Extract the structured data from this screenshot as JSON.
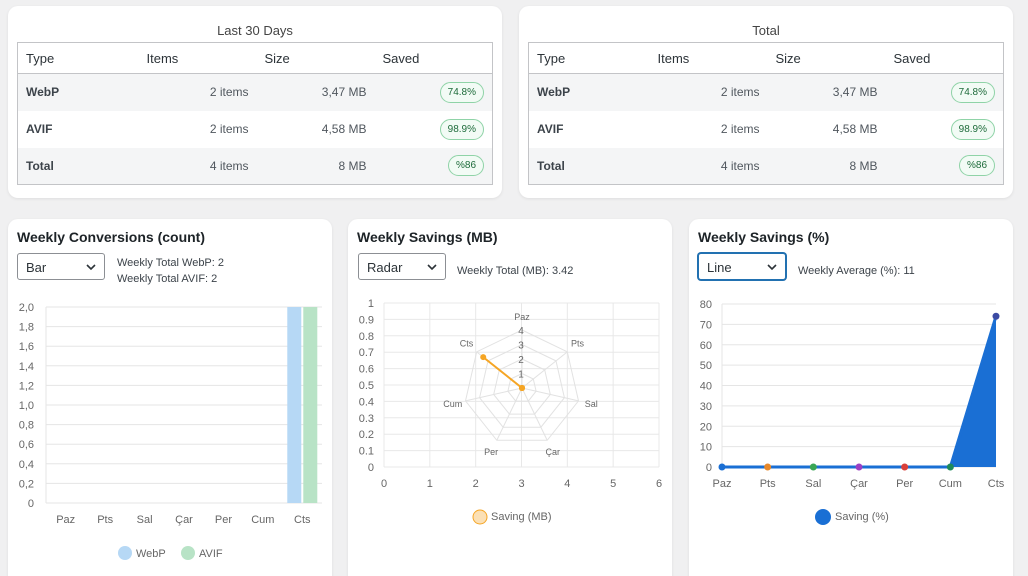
{
  "last30": {
    "title": "Last 30 Days",
    "headers": [
      "Type",
      "Items",
      "Size",
      "Saved"
    ],
    "rows": [
      {
        "type": "WebP",
        "items": "2 items",
        "size": "3,47 MB",
        "saved": "74.8%"
      },
      {
        "type": "AVIF",
        "items": "2 items",
        "size": "4,58 MB",
        "saved": "98.9%"
      },
      {
        "type": "Total",
        "items": "4 items",
        "size": "8 MB",
        "saved": "%86"
      }
    ]
  },
  "total": {
    "title": "Total",
    "headers": [
      "Type",
      "Items",
      "Size",
      "Saved"
    ],
    "rows": [
      {
        "type": "WebP",
        "items": "2 items",
        "size": "3,47 MB",
        "saved": "74.8%"
      },
      {
        "type": "AVIF",
        "items": "2 items",
        "size": "4,58 MB",
        "saved": "98.9%"
      },
      {
        "type": "Total",
        "items": "4 items",
        "size": "8 MB",
        "saved": "%86"
      }
    ]
  },
  "conversions": {
    "title": "Weekly Conversions (count)",
    "select_value": "Bar",
    "meta_webp_label": "Weekly Total WebP:",
    "meta_webp_value": "2",
    "meta_avif_label": "Weekly Total AVIF:",
    "meta_avif_value": "2"
  },
  "savings_mb": {
    "title": "Weekly Savings (MB)",
    "select_value": "Radar",
    "meta_label": "Weekly Total (MB):",
    "meta_value": "3.42"
  },
  "savings_pct": {
    "title": "Weekly Savings (%)",
    "select_value": "Line",
    "meta_label": "Weekly Average (%):",
    "meta_value": "11"
  },
  "colors": {
    "webp": "#b6d8f5",
    "avif": "#b8e3c6",
    "saving_mb": "#f5a524",
    "saving_pct": "#1a6fd4"
  },
  "chart_data": [
    {
      "type": "bar",
      "categories": [
        "Paz",
        "Pts",
        "Sal",
        "Çar",
        "Per",
        "Cum",
        "Cts"
      ],
      "series": [
        {
          "name": "WebP",
          "values": [
            0,
            0,
            0,
            0,
            0,
            0,
            2
          ]
        },
        {
          "name": "AVIF",
          "values": [
            0,
            0,
            0,
            0,
            0,
            0,
            2
          ]
        }
      ],
      "ylim": [
        0,
        2
      ],
      "yticks": [
        "0",
        "0,2",
        "0,4",
        "0,6",
        "0,8",
        "1,0",
        "1,2",
        "1,4",
        "1,6",
        "1,8",
        "2,0"
      ],
      "legend": "bottom"
    },
    {
      "type": "radar",
      "categories": [
        "Paz",
        "Pts",
        "Sal",
        "Çar",
        "Per",
        "Cum",
        "Cts"
      ],
      "series": [
        {
          "name": "Saving (MB)",
          "values": [
            0,
            0,
            0,
            0,
            0,
            0,
            3.42
          ]
        }
      ],
      "rticks": [
        "1",
        "2",
        "3",
        "4"
      ],
      "x_axis": {
        "ticks": [
          "0",
          "1",
          "2",
          "3",
          "4",
          "5",
          "6"
        ],
        "range": [
          0,
          6
        ]
      },
      "y_axis": {
        "ticks": [
          "0",
          "0.1",
          "0.2",
          "0.3",
          "0.4",
          "0.5",
          "0.6",
          "0.7",
          "0.8",
          "0.9",
          "1"
        ],
        "range": [
          0,
          1
        ]
      },
      "legend": "bottom"
    },
    {
      "type": "area",
      "categories": [
        "Paz",
        "Pts",
        "Sal",
        "Çar",
        "Per",
        "Cum",
        "Cts"
      ],
      "series": [
        {
          "name": "Saving (%)",
          "values": [
            0,
            0,
            0,
            0,
            0,
            0,
            74
          ]
        }
      ],
      "point_colors": [
        "#1a6fd4",
        "#e8892b",
        "#3aa655",
        "#9b3fc4",
        "#d9403a",
        "#1e8a5a",
        "#3b4aa3"
      ],
      "ylim": [
        0,
        80
      ],
      "yticks": [
        "0",
        "10",
        "20",
        "30",
        "40",
        "50",
        "60",
        "70",
        "80"
      ],
      "legend": "bottom"
    }
  ]
}
